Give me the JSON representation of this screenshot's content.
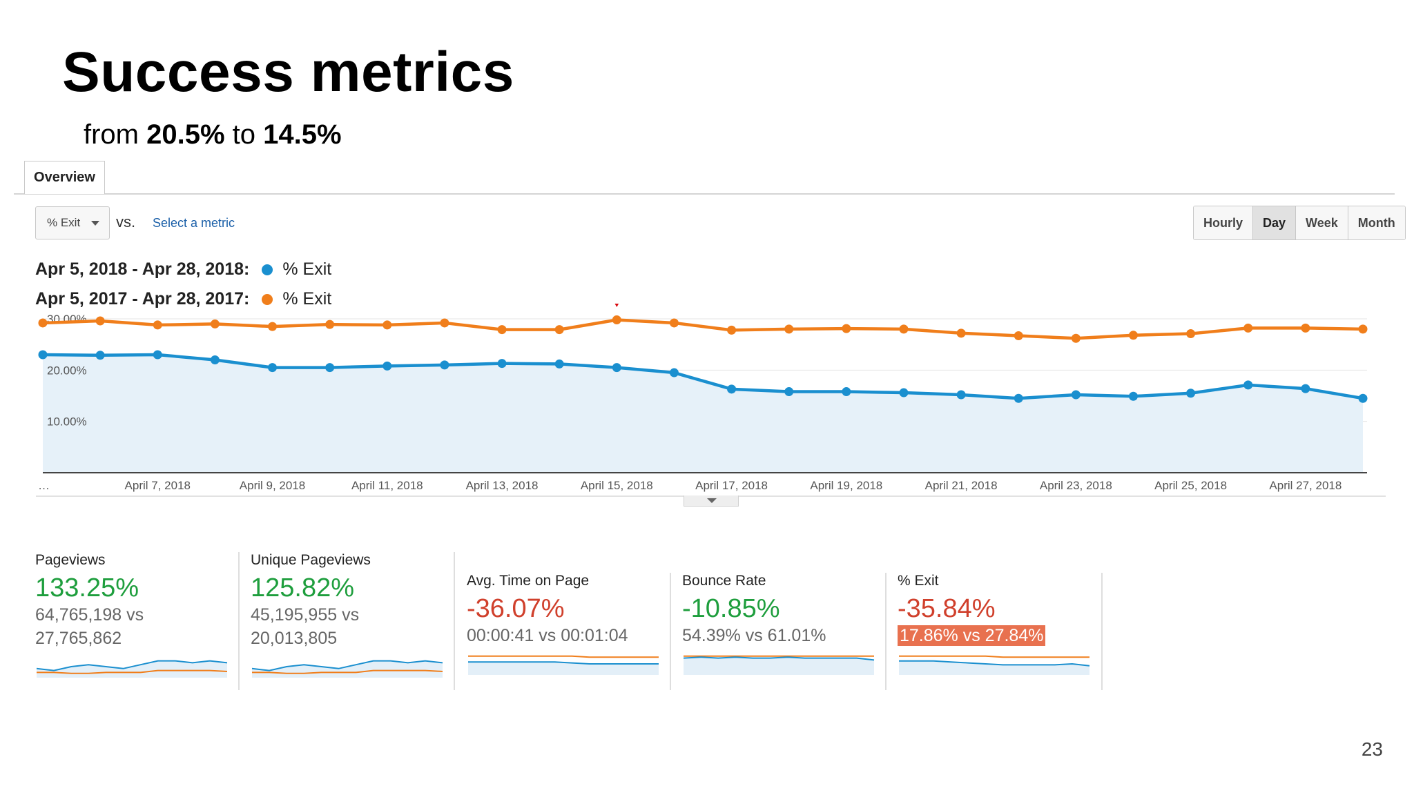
{
  "slide": {
    "title": "Success metrics",
    "subtitle": {
      "prefix": "from ",
      "from_value": "20.5%",
      "middle": " to ",
      "to_value": "14.5%"
    },
    "page_number": "23"
  },
  "toolbar": {
    "tab_label": "Overview",
    "metric_select_value": "% Exit",
    "vs_label": "vs.",
    "select_metric_label": "Select a metric",
    "granularity": {
      "hourly": "Hourly",
      "day": "Day",
      "week": "Week",
      "month": "Month",
      "active": "Day"
    }
  },
  "legend": [
    {
      "range": "Apr 5, 2018 - Apr 28, 2018:",
      "name": "% Exit",
      "color": "#1a8fcf"
    },
    {
      "range": "Apr 5, 2017 - Apr 28, 2017:",
      "name": "% Exit",
      "color": "#f07e1b"
    }
  ],
  "chart_data": {
    "type": "line",
    "x": [
      "Apr 5",
      "Apr 6",
      "Apr 7",
      "Apr 8",
      "Apr 9",
      "Apr 10",
      "Apr 11",
      "Apr 12",
      "Apr 13",
      "Apr 14",
      "Apr 15",
      "Apr 16",
      "Apr 17",
      "Apr 18",
      "Apr 19",
      "Apr 20",
      "Apr 21",
      "Apr 22",
      "Apr 23",
      "Apr 24",
      "Apr 25",
      "Apr 26",
      "Apr 27",
      "Apr 28"
    ],
    "x_tick_labels": [
      "…",
      "April 7, 2018",
      "April 9, 2018",
      "April 11, 2018",
      "April 13, 2018",
      "April 15, 2018",
      "April 17, 2018",
      "April 19, 2018",
      "April 21, 2018",
      "April 23, 2018",
      "April 25, 2018",
      "April 27, 2018"
    ],
    "y_tick_labels": [
      "30.00%",
      "20.00%",
      "10.00%"
    ],
    "ylim": [
      0,
      30
    ],
    "grid": true,
    "series": [
      {
        "name": "% Exit",
        "color": "#1a8fcf",
        "filled": true,
        "values": [
          23.0,
          22.9,
          23.0,
          22.0,
          20.5,
          20.5,
          20.8,
          21.0,
          21.3,
          21.2,
          20.5,
          19.5,
          16.3,
          15.8,
          15.8,
          15.6,
          15.2,
          14.5,
          15.2,
          14.9,
          15.5,
          17.1,
          16.4,
          14.5
        ]
      },
      {
        "name": "% Exit",
        "color": "#f07e1b",
        "filled": false,
        "values": [
          29.2,
          29.6,
          28.8,
          29.0,
          28.5,
          28.9,
          28.8,
          29.2,
          27.9,
          27.9,
          29.8,
          29.2,
          27.8,
          28.0,
          28.1,
          28.0,
          27.2,
          26.7,
          26.2,
          26.8,
          27.1,
          28.2,
          28.2,
          28.0
        ]
      }
    ],
    "annotation": {
      "type": "arrow",
      "at_x": "Apr 15",
      "color": "#d9090f"
    }
  },
  "cards": [
    {
      "label": "Pageviews",
      "value": "133.25%",
      "compare_line1": "64,765,198 vs",
      "compare_line2": "27,765,862",
      "value_color": "#1e9e3d",
      "highlight": false,
      "spark_current": [
        4,
        3,
        5,
        6,
        5,
        4,
        6,
        8,
        8,
        7,
        8,
        7
      ],
      "spark_previous": [
        2,
        2,
        1.5,
        1.5,
        2,
        2,
        2,
        3,
        3,
        3,
        3,
        2.5
      ]
    },
    {
      "label": "Unique Pageviews",
      "value": "125.82%",
      "compare_line1": "45,195,955 vs",
      "compare_line2": "20,013,805",
      "value_color": "#1e9e3d",
      "highlight": false,
      "spark_current": [
        4,
        3,
        5,
        6,
        5,
        4,
        6,
        8,
        8,
        7,
        8,
        7
      ],
      "spark_previous": [
        2,
        2,
        1.5,
        1.5,
        2,
        2,
        2,
        3,
        3,
        3,
        3,
        2.5
      ]
    },
    {
      "label": "Avg. Time on Page",
      "value": "-36.07%",
      "compare_line1": "00:00:41 vs 00:01:04",
      "value_color": "#d0402c",
      "highlight": false,
      "spark_current": [
        6,
        6,
        6,
        6,
        6,
        6,
        5.5,
        5,
        5,
        5,
        5,
        5
      ],
      "spark_previous": [
        9,
        9,
        9,
        9,
        9,
        9,
        9,
        8.5,
        8.5,
        8.5,
        8.5,
        8.5
      ]
    },
    {
      "label": "Bounce Rate",
      "value": "-10.85%",
      "compare_line1": "54.39% vs 61.01%",
      "value_color": "#1e9e3d",
      "highlight": false,
      "spark_current": [
        8,
        8.5,
        8,
        8.5,
        8,
        8,
        8.5,
        8,
        8,
        8,
        8,
        7
      ],
      "spark_previous": [
        9,
        9,
        9,
        9,
        9,
        9,
        9,
        9,
        9,
        9,
        9,
        9
      ]
    },
    {
      "label": "% Exit",
      "value": "-35.84%",
      "compare_line1": "17.86% vs 27.84%",
      "value_color": "#d0402c",
      "highlight": true,
      "spark_current": [
        6.5,
        6.5,
        6.5,
        6,
        5.5,
        5,
        4.5,
        4.5,
        4.5,
        4.5,
        5,
        4
      ],
      "spark_previous": [
        9,
        9,
        9,
        9,
        9,
        9,
        8.5,
        8.5,
        8.5,
        8.5,
        8.5,
        8.5
      ]
    }
  ]
}
